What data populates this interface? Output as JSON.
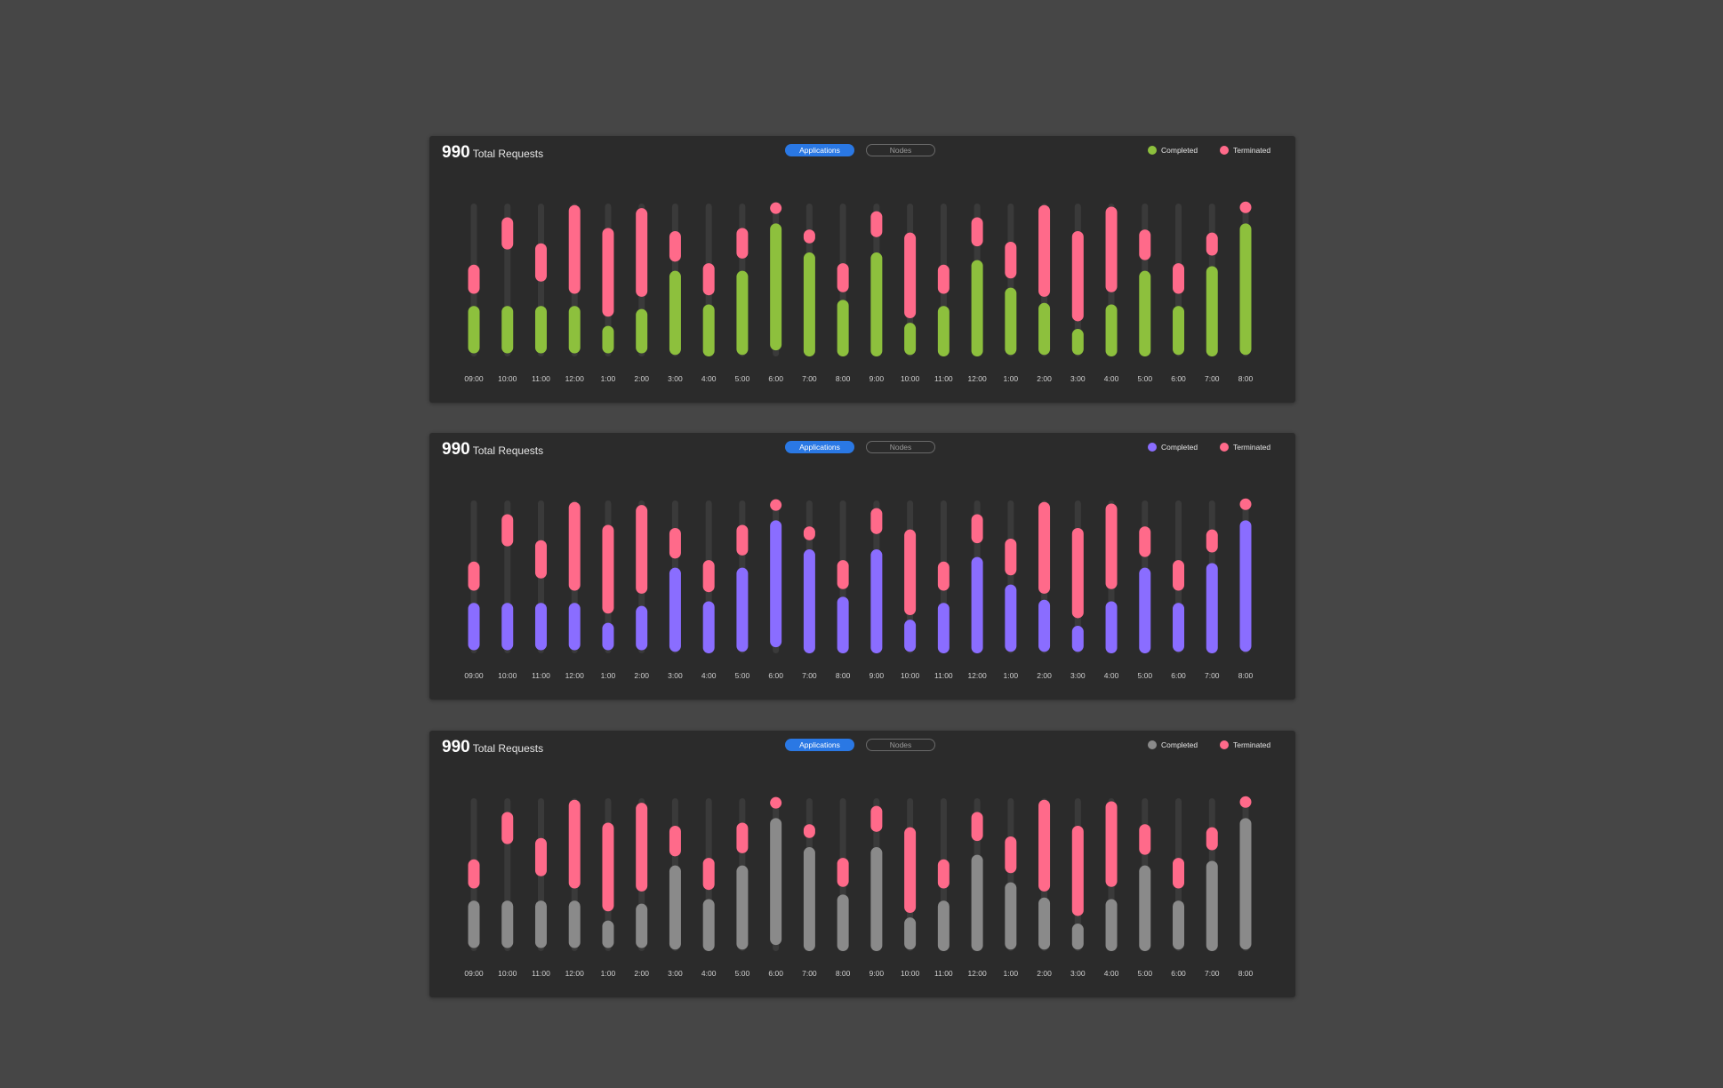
{
  "cards": [
    {
      "total_value": "990",
      "total_label": "Total Requests",
      "tabs": {
        "applications": "Applications",
        "nodes": "Nodes"
      },
      "legend": {
        "completed": "Completed",
        "terminated": "Terminated"
      },
      "colors": {
        "completed": "#8dc03d",
        "terminated": "#ff6a8a",
        "track": "#3a3a3a",
        "tab_active": "#2a78e4"
      }
    },
    {
      "total_value": "990",
      "total_label": "Total Requests",
      "tabs": {
        "applications": "Applications",
        "nodes": "Nodes"
      },
      "legend": {
        "completed": "Completed",
        "terminated": "Terminated"
      },
      "colors": {
        "completed": "#8a6dff",
        "terminated": "#ff6a8a",
        "track": "#3a3a3a",
        "tab_active": "#2a78e4"
      }
    },
    {
      "total_value": "990",
      "total_label": "Total Requests",
      "tabs": {
        "applications": "Applications",
        "nodes": "Nodes"
      },
      "legend": {
        "completed": "Completed",
        "terminated": "Terminated"
      },
      "colors": {
        "completed": "#8a8a8a",
        "terminated": "#ff6a8a",
        "track": "#3a3a3a",
        "tab_active": "#2a78e4"
      }
    }
  ],
  "chart_data": {
    "type": "bar",
    "categories": [
      "09:00",
      "10:00",
      "11:00",
      "12:00",
      "1:00",
      "2:00",
      "3:00",
      "4:00",
      "5:00",
      "6:00",
      "7:00",
      "8:00",
      "9:00",
      "10:00",
      "11:00",
      "12:00",
      "1:00",
      "2:00",
      "3:00",
      "4:00",
      "5:00",
      "6:00",
      "7:00",
      "8:00"
    ],
    "ylim": [
      0,
      100
    ],
    "grid": false,
    "legend_position": "top-right",
    "series": [
      {
        "name": "Completed",
        "ranges": [
          [
            2,
            33
          ],
          [
            2,
            33
          ],
          [
            2,
            33
          ],
          [
            2,
            33
          ],
          [
            2,
            20
          ],
          [
            2,
            31
          ],
          [
            1,
            56
          ],
          [
            0,
            34
          ],
          [
            1,
            56
          ],
          [
            4,
            87
          ],
          [
            0,
            68
          ],
          [
            0,
            37
          ],
          [
            0,
            68
          ],
          [
            1,
            22
          ],
          [
            0,
            33
          ],
          [
            0,
            63
          ],
          [
            1,
            45
          ],
          [
            1,
            35
          ],
          [
            1,
            18
          ],
          [
            0,
            34
          ],
          [
            0,
            56
          ],
          [
            1,
            33
          ],
          [
            0,
            59
          ],
          [
            1,
            87
          ]
        ]
      },
      {
        "name": "Terminated",
        "ranges": [
          [
            41,
            60
          ],
          [
            70,
            91
          ],
          [
            49,
            74
          ],
          [
            41,
            99
          ],
          [
            26,
            84
          ],
          [
            39,
            97
          ],
          [
            62,
            82
          ],
          [
            40,
            61
          ],
          [
            64,
            84
          ],
          [
            94,
            100
          ],
          [
            74,
            83
          ],
          [
            42,
            61
          ],
          [
            78,
            95
          ],
          [
            25,
            81
          ],
          [
            41,
            60
          ],
          [
            72,
            91
          ],
          [
            51,
            75
          ],
          [
            39,
            99
          ],
          [
            23,
            82
          ],
          [
            42,
            98
          ],
          [
            63,
            83
          ],
          [
            41,
            61
          ],
          [
            66,
            81
          ],
          [
            95,
            100
          ]
        ]
      }
    ]
  }
}
